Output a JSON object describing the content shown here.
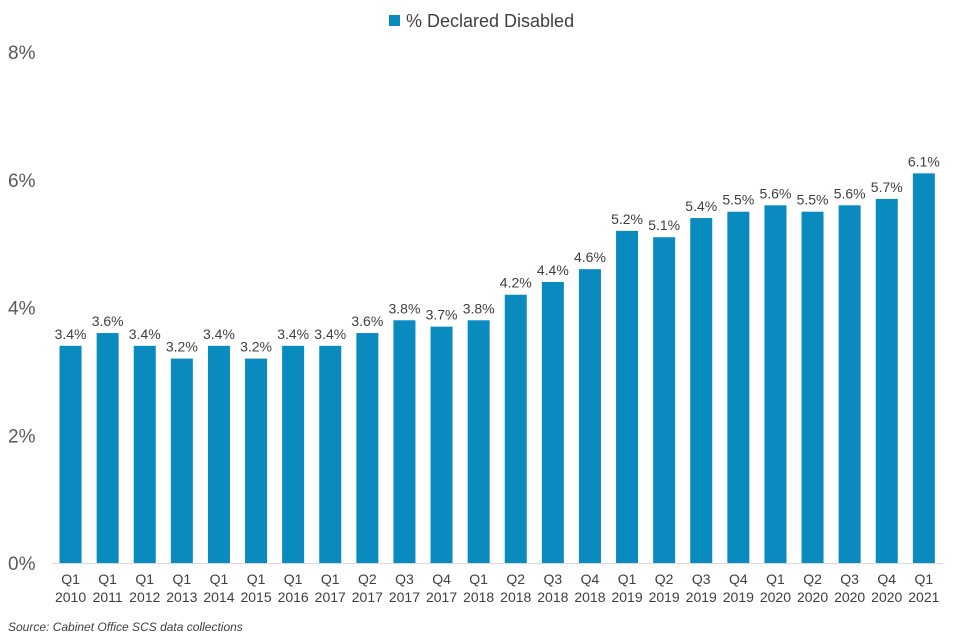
{
  "chart_data": {
    "type": "bar",
    "series": [
      {
        "name": "% Declared Disabled",
        "color": "#0A8BBF",
        "values": [
          3.4,
          3.6,
          3.4,
          3.2,
          3.4,
          3.2,
          3.4,
          3.4,
          3.6,
          3.8,
          3.7,
          3.8,
          4.2,
          4.4,
          4.6,
          5.2,
          5.1,
          5.4,
          5.5,
          5.6,
          5.5,
          5.6,
          5.7,
          6.1
        ],
        "labels": [
          "3.4%",
          "3.6%",
          "3.4%",
          "3.2%",
          "3.4%",
          "3.2%",
          "3.4%",
          "3.4%",
          "3.6%",
          "3.8%",
          "3.7%",
          "3.8%",
          "4.2%",
          "4.4%",
          "4.6%",
          "5.2%",
          "5.1%",
          "5.4%",
          "5.5%",
          "5.6%",
          "5.5%",
          "5.6%",
          "5.7%",
          "6.1%"
        ]
      }
    ],
    "categories": [
      {
        "quarter": "Q1",
        "year": "2010"
      },
      {
        "quarter": "Q1",
        "year": "2011"
      },
      {
        "quarter": "Q1",
        "year": "2012"
      },
      {
        "quarter": "Q1",
        "year": "2013"
      },
      {
        "quarter": "Q1",
        "year": "2014"
      },
      {
        "quarter": "Q1",
        "year": "2015"
      },
      {
        "quarter": "Q1",
        "year": "2016"
      },
      {
        "quarter": "Q1",
        "year": "2017"
      },
      {
        "quarter": "Q2",
        "year": "2017"
      },
      {
        "quarter": "Q3",
        "year": "2017"
      },
      {
        "quarter": "Q4",
        "year": "2017"
      },
      {
        "quarter": "Q1",
        "year": "2018"
      },
      {
        "quarter": "Q2",
        "year": "2018"
      },
      {
        "quarter": "Q3",
        "year": "2018"
      },
      {
        "quarter": "Q4",
        "year": "2018"
      },
      {
        "quarter": "Q1",
        "year": "2019"
      },
      {
        "quarter": "Q2",
        "year": "2019"
      },
      {
        "quarter": "Q3",
        "year": "2019"
      },
      {
        "quarter": "Q4",
        "year": "2019"
      },
      {
        "quarter": "Q1",
        "year": "2020"
      },
      {
        "quarter": "Q2",
        "year": "2020"
      },
      {
        "quarter": "Q3",
        "year": "2020"
      },
      {
        "quarter": "Q4",
        "year": "2020"
      },
      {
        "quarter": "Q1",
        "year": "2021"
      }
    ],
    "yticks": [
      "0%",
      "2%",
      "4%",
      "6%",
      "8%"
    ],
    "ylim": [
      0,
      8
    ],
    "grid": false,
    "legend_position": "top-center",
    "xlabel": "",
    "ylabel": ""
  },
  "source": "Source: Cabinet Office SCS data collections"
}
